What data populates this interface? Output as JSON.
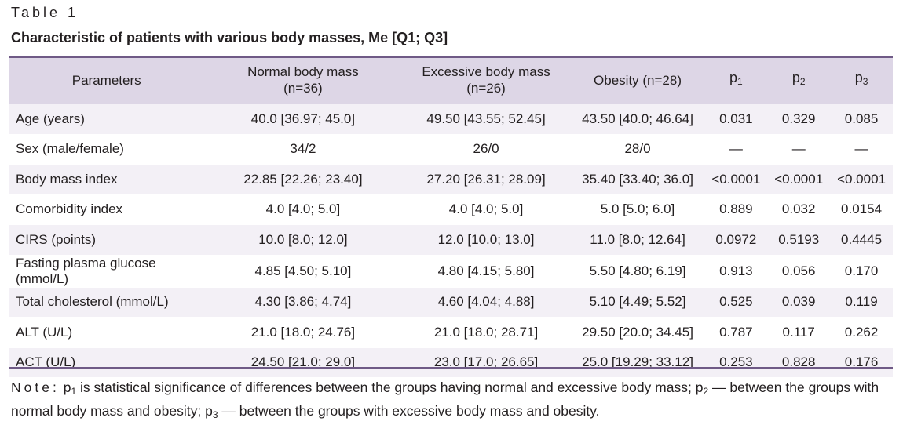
{
  "caption": {
    "label": "Table 1",
    "title": "Characteristic of patients with various body masses, Me [Q1; Q3]"
  },
  "table": {
    "headers": {
      "parameters": "Parameters",
      "group1": "Normal body mass (n=36)",
      "group2": "Excessive body mass (n=26)",
      "group3": "Obesity (n=28)",
      "p1": "p",
      "p1_sub": "1",
      "p2": "p",
      "p2_sub": "2",
      "p3": "p",
      "p3_sub": "3"
    },
    "rows": [
      [
        "Age (years)",
        "40.0 [36.97; 45.0]",
        "49.50 [43.55; 52.45]",
        "43.50 [40.0; 46.64]",
        "0.031",
        "0.329",
        "0.085"
      ],
      [
        "Sex (male/female)",
        "34/2",
        "26/0",
        "28/0",
        "—",
        "—",
        "—"
      ],
      [
        "Body mass index",
        "22.85 [22.26; 23.40]",
        "27.20 [26.31; 28.09]",
        "35.40 [33.40; 36.0]",
        "<0.0001",
        "<0.0001",
        "<0.0001"
      ],
      [
        "Comorbidity index",
        "4.0 [4.0; 5.0]",
        "4.0 [4.0; 5.0]",
        "5.0 [5.0; 6.0]",
        "0.889",
        "0.032",
        "0.0154"
      ],
      [
        "CIRS (points)",
        "10.0 [8.0; 12.0]",
        "12.0 [10.0; 13.0]",
        "11.0 [8.0; 12.64]",
        "0.0972",
        "0.5193",
        "0.4445"
      ],
      [
        "Fasting plasma glucose (mmol/L)",
        "4.85 [4.50; 5.10]",
        "4.80 [4.15; 5.80]",
        "5.50 [4.80; 6.19]",
        "0.913",
        "0.056",
        "0.170"
      ],
      [
        "Total cholesterol (mmol/L)",
        "4.30 [3.86; 4.74]",
        "4.60 [4.04; 4.88]",
        "5.10 [4.49; 5.52]",
        "0.525",
        "0.039",
        "0.119"
      ],
      [
        "ALT (U/L)",
        "21.0 [18.0; 24.76]",
        "21.0 [18.0; 28.71]",
        "29.50 [20.0; 34.45]",
        "0.787",
        "0.117",
        "0.262"
      ],
      [
        "ACT (U/L)",
        "24.50 [21.0; 29.0]",
        "23.0 [17.0; 26.65]",
        "25.0 [19.29; 33.12]",
        "0.253",
        "0.828",
        "0.176"
      ]
    ]
  },
  "note": {
    "prefix": "Note:",
    "p1": "p",
    "p1_sub": "1",
    "text1": " is statistical significance of differences between the groups having normal and excessive body mass; ",
    "p2": "p",
    "p2_sub": "2",
    "text2": " — between the groups with normal body mass and obesity; ",
    "p3": "p",
    "p3_sub": "3",
    "text3": " — between the groups with excessive body mass and obesity."
  },
  "colors": {
    "header_bg": "#ddd6e6",
    "row_shade": "#f3f0f6",
    "rule": "#6f5a86"
  }
}
